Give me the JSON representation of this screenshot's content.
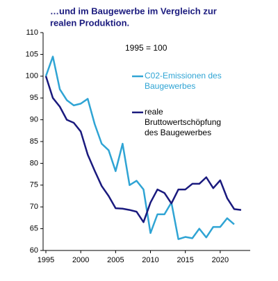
{
  "chart_data": {
    "type": "line",
    "title": [
      "…und im Baugewerbe im Vergleich zur",
      "realen Produktion."
    ],
    "annotation": "1995 = 100",
    "x": [
      1995,
      1996,
      1997,
      1998,
      1999,
      2000,
      2001,
      2002,
      2003,
      2004,
      2005,
      2006,
      2007,
      2008,
      2009,
      2010,
      2011,
      2012,
      2013,
      2014,
      2015,
      2016,
      2017,
      2018,
      2019,
      2020,
      2021,
      2022,
      2023,
      2024
    ],
    "series": [
      {
        "name": [
          "C02-Emissionen des",
          "Baugewerbes"
        ],
        "color": "#2fa4d4",
        "values": [
          100,
          104.5,
          97,
          94.5,
          93.3,
          93.7,
          94.8,
          89,
          84.5,
          83,
          78.2,
          84.5,
          75,
          76,
          74,
          64,
          68.3,
          68.3,
          71,
          62.6,
          63.1,
          62.8,
          65,
          63,
          65.4,
          65.4,
          67.4,
          66,
          null,
          null
        ]
      },
      {
        "name": [
          "reale",
          "Bruttowertschöpfung",
          "des Baugewerbes"
        ],
        "color": "#1a1a7e",
        "values": [
          100,
          95,
          93,
          90,
          89.3,
          87.3,
          82,
          78.3,
          74.8,
          72.5,
          69.7,
          69.6,
          69.3,
          68.9,
          66.5,
          71,
          74,
          73.2,
          70.8,
          74,
          74,
          75.3,
          75.3,
          76.8,
          74.3,
          76.1,
          72,
          69.5,
          69.3,
          null
        ]
      }
    ],
    "xlim": [
      1994.6,
      2024.3
    ],
    "ylim": [
      60,
      110
    ],
    "xticks": [
      1995,
      2000,
      2005,
      2010,
      2015,
      2020
    ],
    "yticks": [
      60,
      65,
      70,
      75,
      80,
      85,
      90,
      95,
      100,
      105,
      110
    ]
  }
}
